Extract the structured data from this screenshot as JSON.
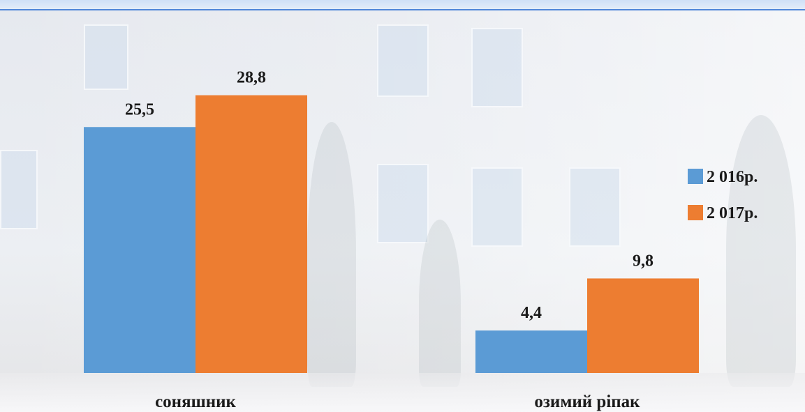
{
  "chart_data": {
    "type": "bar",
    "categories": [
      "соняшник",
      "озимий ріпак"
    ],
    "series": [
      {
        "name": "2 016р.",
        "color": "#5b9bd5",
        "values": [
          25.5,
          4.4
        ],
        "labels": [
          "25,5",
          "4,4"
        ]
      },
      {
        "name": "2 017р.",
        "color": "#ed7d31",
        "values": [
          28.8,
          9.8
        ],
        "labels": [
          "28,8",
          "9,8"
        ]
      }
    ],
    "title": "",
    "xlabel": "",
    "ylabel": "",
    "ylim": [
      0,
      30
    ],
    "grid": false,
    "legend": "right"
  }
}
